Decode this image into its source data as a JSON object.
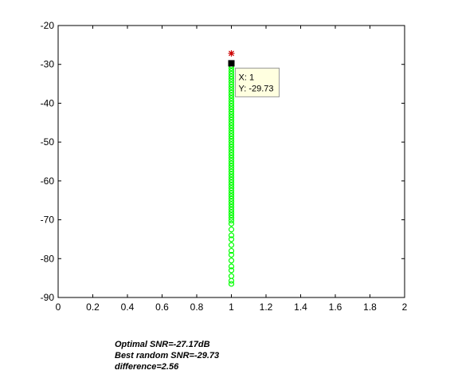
{
  "chart_data": {
    "type": "scatter",
    "title": "",
    "xlabel": "",
    "ylabel": "",
    "xlim": [
      0,
      2
    ],
    "ylim": [
      -90,
      -20
    ],
    "x_ticks": [
      "0",
      "0.2",
      "0.4",
      "0.6",
      "0.8",
      "1",
      "1.2",
      "1.4",
      "1.6",
      "1.8",
      "2"
    ],
    "y_ticks": [
      "-20",
      "-30",
      "-40",
      "-50",
      "-60",
      "-70",
      "-80",
      "-90"
    ],
    "grid": false,
    "colors": {
      "random_points": "#00ff00",
      "optimal_marker": "#cc0000",
      "best_marker": "#000000",
      "tooltip_bg": "#ffffe0"
    },
    "series": [
      {
        "marker": "circle",
        "color": "#00ff00",
        "x": [
          1,
          1,
          1,
          1,
          1,
          1,
          1,
          1,
          1,
          1,
          1,
          1,
          1,
          1,
          1,
          1,
          1,
          1,
          1,
          1,
          1,
          1,
          1,
          1,
          1,
          1,
          1,
          1,
          1,
          1,
          1,
          1,
          1,
          1,
          1,
          1,
          1,
          1,
          1,
          1,
          1,
          1,
          1,
          1,
          1,
          1,
          1,
          1,
          1,
          1,
          1,
          1,
          1,
          1,
          1,
          1,
          1,
          1,
          1,
          1,
          1,
          1,
          1,
          1,
          1,
          1,
          1,
          1,
          1,
          1,
          1,
          1
        ],
        "y": [
          -29.73,
          -30.3,
          -31.0,
          -31.7,
          -32.4,
          -33.1,
          -33.8,
          -34.5,
          -35.2,
          -35.9,
          -36.6,
          -37.3,
          -38.0,
          -38.7,
          -39.4,
          -40.1,
          -40.8,
          -41.5,
          -42.2,
          -42.9,
          -43.6,
          -44.3,
          -45.0,
          -45.7,
          -46.4,
          -47.1,
          -47.8,
          -48.5,
          -49.2,
          -49.9,
          -50.6,
          -51.3,
          -52.0,
          -52.7,
          -53.4,
          -54.1,
          -54.8,
          -55.5,
          -56.2,
          -56.9,
          -57.6,
          -58.3,
          -59.0,
          -59.7,
          -60.4,
          -61.1,
          -61.8,
          -62.5,
          -63.2,
          -63.9,
          -64.6,
          -65.3,
          -66.0,
          -66.7,
          -67.4,
          -68.1,
          -68.8,
          -69.5,
          -70.2,
          -71.0,
          -72.5,
          -74.0,
          -75.0,
          -76.5,
          -78.0,
          -79.0,
          -80.5,
          -82.0,
          -83.0,
          -84.5,
          -85.7,
          -86.5
        ]
      }
    ],
    "optimal_point": {
      "x": 1,
      "y": -27.17,
      "marker": "asterisk",
      "color": "#cc0000"
    },
    "best_point": {
      "x": 1,
      "y": -29.73,
      "marker": "square",
      "color": "#000000"
    },
    "data_tip": {
      "x_text": "X: 1",
      "y_text": "Y: -29.73"
    }
  },
  "annotation": {
    "line1": "Optimal SNR=-27.17dB",
    "line2": "Best random SNR=-29.73",
    "line3": "difference=2.56"
  }
}
